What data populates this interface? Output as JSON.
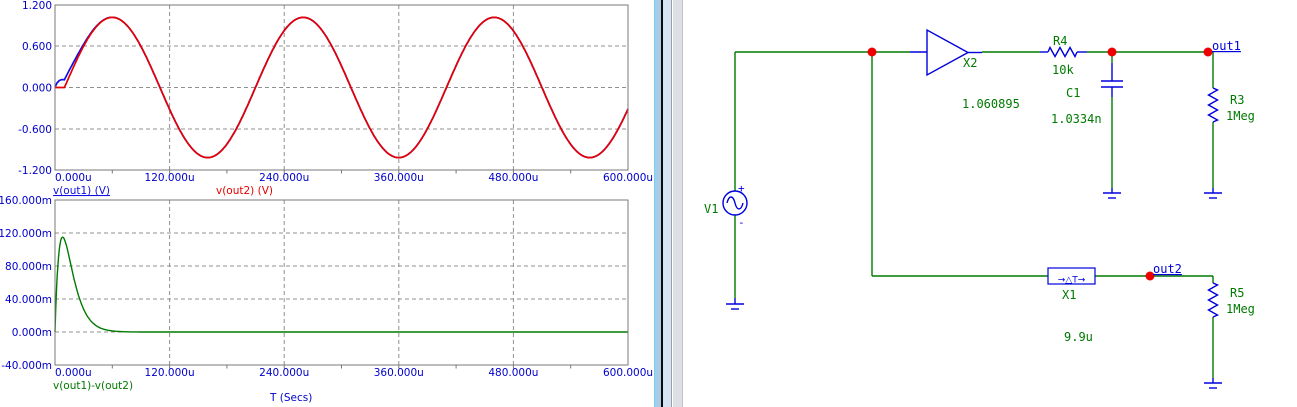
{
  "chart_data": [
    {
      "type": "line",
      "title": "",
      "xlabel": "",
      "ylabel": "",
      "xlim_us": [
        0,
        600
      ],
      "ylim": [
        -1.2,
        1.2
      ],
      "grid": true,
      "legend_position": "below",
      "xticklabels": [
        "0.000u",
        "120.000u",
        "240.000u",
        "360.000u",
        "480.000u",
        "600.000u"
      ],
      "yticklabels": [
        "1.200",
        "0.600",
        "0.000",
        "-0.600",
        "-1.200"
      ],
      "series": [
        {
          "name": "v(out1) (V)",
          "color": "#0f0fe6",
          "underlined": true,
          "model": "delayed_sine_plus_transient",
          "amplitude": 1.02,
          "period_us": 200,
          "delay_us": 9.9,
          "transient_peak": 0.115,
          "transient_peak_time_us": 8
        },
        {
          "name": "v(out2) (V)",
          "color": "#e60000",
          "underlined": false,
          "model": "delayed_sine",
          "amplitude": 1.02,
          "period_us": 200,
          "delay_us": 9.9
        }
      ]
    },
    {
      "type": "line",
      "title": "",
      "xlabel": "T (Secs)",
      "ylabel": "",
      "xlim_us": [
        0,
        600
      ],
      "ylim": [
        -0.04,
        0.16
      ],
      "grid": true,
      "legend_position": "below",
      "xticklabels": [
        "0.000u",
        "120.000u",
        "240.000u",
        "360.000u",
        "480.000u",
        "600.000u"
      ],
      "yticklabels": [
        "160.000m",
        "120.000m",
        "80.000m",
        "40.000m",
        "0.000m",
        "-40.000m"
      ],
      "series": [
        {
          "name": "v(out1)-v(out2)",
          "color": "#007a00",
          "underlined": false,
          "model": "transient_pulse",
          "peak": 0.115,
          "peak_time_us": 8
        }
      ]
    }
  ],
  "schematic": {
    "source": {
      "ref": "V1",
      "plus": "+",
      "minus": "-"
    },
    "buffer": {
      "ref": "X2",
      "gain": "1.060895"
    },
    "r4": {
      "ref": "R4",
      "value": "10k"
    },
    "c1": {
      "ref": "C1",
      "value": "1.0334n"
    },
    "r3": {
      "ref": "R3",
      "value": "1Meg"
    },
    "delay": {
      "ref": "X1",
      "symbol": "→△T→",
      "value": "9.9u"
    },
    "r5": {
      "ref": "R5",
      "value": "1Meg"
    },
    "nodes": {
      "out1": "out1",
      "out2": "out2"
    }
  }
}
